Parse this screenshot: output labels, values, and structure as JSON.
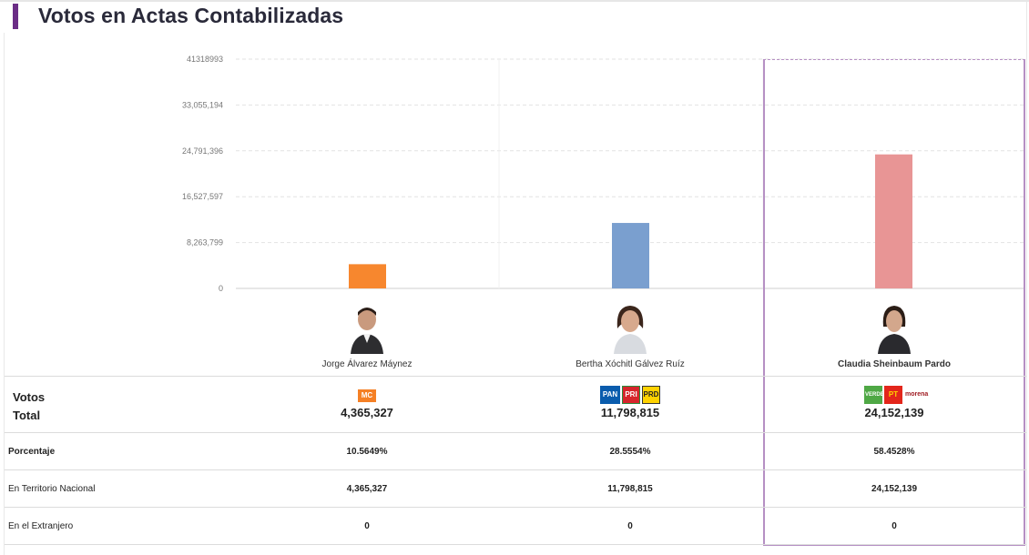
{
  "title": "Votos en Actas Contabilizadas",
  "chart_data": {
    "type": "bar",
    "categories": [
      "Jorge Álvarez Máynez",
      "Bertha Xóchitl Gálvez Ruíz",
      "Claudia Sheinbaum Pardo"
    ],
    "values": [
      4365327,
      11798815,
      24152139
    ],
    "colors": [
      "#f7872e",
      "#7a9fcf",
      "#e89595"
    ],
    "ylim": [
      0,
      41318993
    ],
    "yticks": [
      "0",
      "8,263,799",
      "16,527,597",
      "24,791,396",
      "33,055,194",
      "41318993"
    ],
    "ytick_values": [
      0,
      8263799,
      16527597,
      24791396,
      33055194,
      41318993
    ],
    "grid": true,
    "highlight_index": 2
  },
  "candidates": [
    {
      "name": "Jorge Álvarez Máynez",
      "total": "4,365,327",
      "porcentaje": "10.5649%",
      "nacional": "4,365,327",
      "extranjero": "0",
      "parties": [
        "MC"
      ]
    },
    {
      "name": "Bertha Xóchitl Gálvez Ruíz",
      "total": "11,798,815",
      "porcentaje": "28.5554%",
      "nacional": "11,798,815",
      "extranjero": "0",
      "parties": [
        "PAN",
        "PRI",
        "PRD"
      ]
    },
    {
      "name": "Claudia Sheinbaum Pardo",
      "total": "24,152,139",
      "porcentaje": "58.4528%",
      "nacional": "24,152,139",
      "extranjero": "0",
      "parties": [
        "VERDE",
        "PT",
        "morena"
      ]
    }
  ],
  "rows": {
    "votos": "Votos",
    "total": "Total",
    "porcentaje": "Porcentaje",
    "nacional": "En Territorio Nacional",
    "extranjero": "En el Extranjero"
  }
}
